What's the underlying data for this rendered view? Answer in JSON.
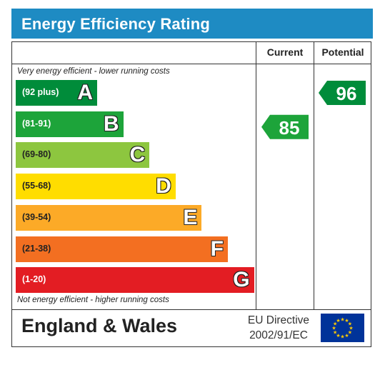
{
  "title": "Energy Efficiency Rating",
  "headers": {
    "current": "Current",
    "potential": "Potential"
  },
  "notes": {
    "top": "Very energy efficient - lower running costs",
    "bottom": "Not energy efficient - higher running costs"
  },
  "chart_data": {
    "type": "bar",
    "title": "Energy Efficiency Rating",
    "categories": [
      "A",
      "B",
      "C",
      "D",
      "E",
      "F",
      "G"
    ],
    "bands": [
      {
        "letter": "A",
        "range": "(92 plus)",
        "min": 92,
        "max": 100,
        "color": "#008c3a",
        "text_color": "#ffffff"
      },
      {
        "letter": "B",
        "range": "(81-91)",
        "min": 81,
        "max": 91,
        "color": "#1da43a",
        "text_color": "#ffffff"
      },
      {
        "letter": "C",
        "range": "(69-80)",
        "min": 69,
        "max": 80,
        "color": "#8dc63f",
        "text_color": "#222222"
      },
      {
        "letter": "D",
        "range": "(55-68)",
        "min": 55,
        "max": 68,
        "color": "#ffdd00",
        "text_color": "#222222"
      },
      {
        "letter": "E",
        "range": "(39-54)",
        "min": 39,
        "max": 54,
        "color": "#fcaa27",
        "text_color": "#222222"
      },
      {
        "letter": "F",
        "range": "(21-38)",
        "min": 21,
        "max": 38,
        "color": "#f36f21",
        "text_color": "#222222"
      },
      {
        "letter": "G",
        "range": "(1-20)",
        "min": 1,
        "max": 20,
        "color": "#e31d23",
        "text_color": "#ffffff"
      }
    ],
    "series": [
      {
        "name": "Current",
        "value": 85,
        "band": "B",
        "color": "#1da43a"
      },
      {
        "name": "Potential",
        "value": 96,
        "band": "A",
        "color": "#008c3a"
      }
    ]
  },
  "footer": {
    "region": "England & Wales",
    "directive_line1": "EU Directive",
    "directive_line2": "2002/91/EC"
  },
  "colors": {
    "title_bar": "#1e8bc3",
    "flag": "#003399",
    "flag_stars": "#ffcc00"
  },
  "icons": {
    "flag": "eu-flag-icon"
  }
}
